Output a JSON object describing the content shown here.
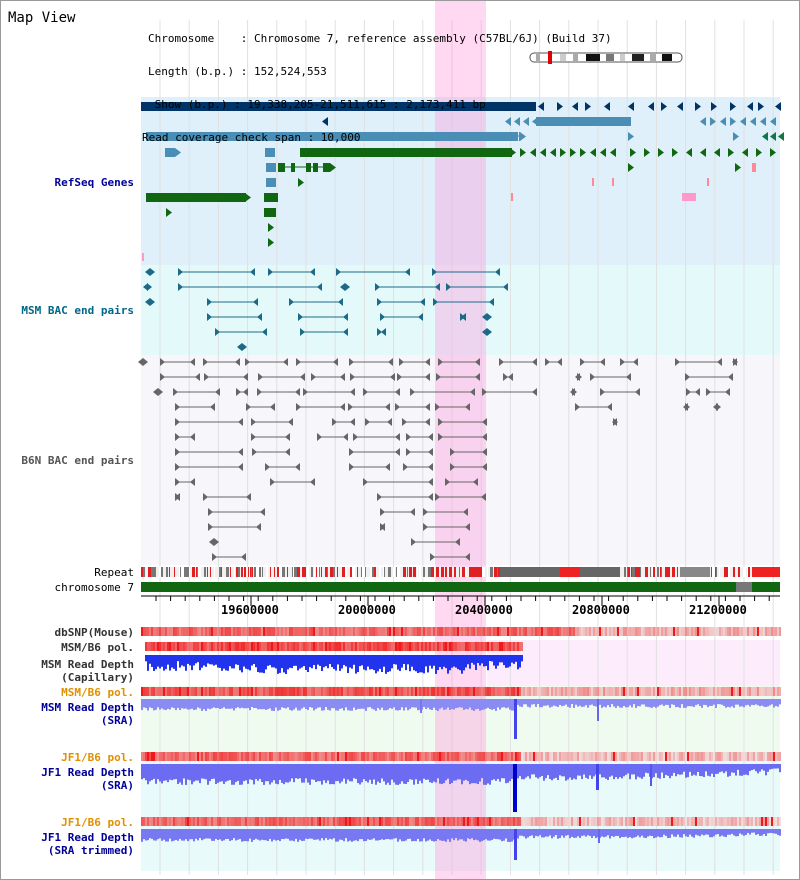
{
  "title": "Map View",
  "info": {
    "chromosome": "Chromosome    : Chromosome 7, reference assembly (C57BL/6J) (Build 37)",
    "length": "Length (b.p.) : 152,524,553",
    "show": " Show (b.p.) : 19,338,205-21,511,615 : 2,173,411 bp",
    "coverage": "Read coverage check span : 10,000"
  },
  "tracks": {
    "refseq": "RefSeq Genes",
    "msm_bac": "MSM BAC end pairs",
    "b6n_bac": "B6N BAC end pairs",
    "repeat": "Repeat",
    "chromosome": "chromosome 7",
    "dbsnp": "dbSNP(Mouse)",
    "msm_b6_pol_1": "MSM/B6 pol.",
    "msm_depth_cap_1": "MSM Read Depth",
    "msm_depth_cap_2": "(Capillary)",
    "msm_b6_pol_2": "MSM/B6 pol.",
    "msm_depth_sra_1": "MSM Read Depth",
    "msm_depth_sra_2": "(SRA)",
    "jf1_b6_pol_1": "JF1/B6 pol.",
    "jf1_depth_sra_1": "JF1 Read Depth",
    "jf1_depth_sra_2": "(SRA)",
    "jf1_b6_pol_2": "JF1/B6 pol.",
    "jf1_depth_trim_1": "JF1 Read Depth",
    "jf1_depth_trim_2": "(SRA trimmed)"
  },
  "axis": {
    "ticks": [
      "19600000",
      "20000000",
      "20400000",
      "20800000",
      "21200000"
    ]
  },
  "colors": {
    "refseq_label": "#000099",
    "msm_label": "#006688",
    "b6n_label": "#555555",
    "orange_label": "#e09000",
    "navy_label": "#000099",
    "highlight": "#ff88dd"
  }
}
